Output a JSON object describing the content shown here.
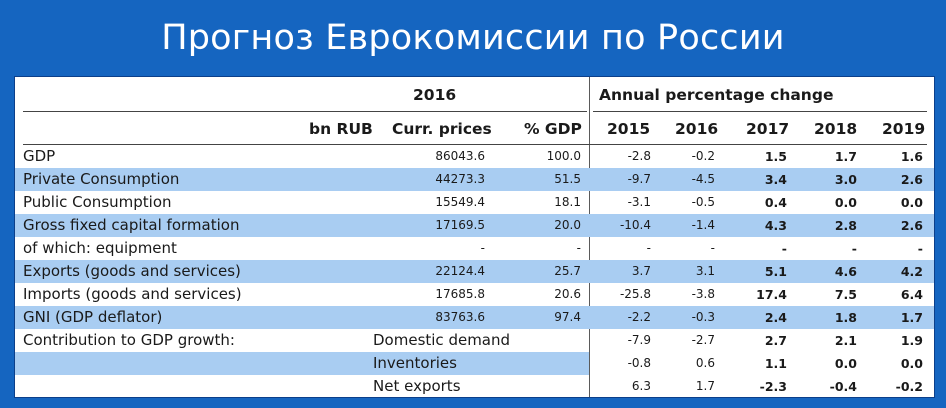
{
  "title": "Прогноз Еврокомиссии по России",
  "table": {
    "header_2016": "2016",
    "header_annual": "Annual percentage change",
    "col_bn_rub": "bn RUB",
    "col_curr_prices": "Curr. prices",
    "col_pct_gdp": "% GDP",
    "years": [
      "2015",
      "2016",
      "2017",
      "2018",
      "2019"
    ],
    "rows": [
      {
        "label": "GDP",
        "sub": "",
        "curr": "86043.6",
        "pct": "100.0",
        "v": [
          "-2.8",
          "-0.2",
          "1.5",
          "1.7",
          "1.6"
        ],
        "shaded": false
      },
      {
        "label": "Private Consumption",
        "sub": "",
        "curr": "44273.3",
        "pct": "51.5",
        "v": [
          "-9.7",
          "-4.5",
          "3.4",
          "3.0",
          "2.6"
        ],
        "shaded": true
      },
      {
        "label": "Public Consumption",
        "sub": "",
        "curr": "15549.4",
        "pct": "18.1",
        "v": [
          "-3.1",
          "-0.5",
          "0.4",
          "0.0",
          "0.0"
        ],
        "shaded": false
      },
      {
        "label": "Gross fixed capital formation",
        "sub": "",
        "curr": "17169.5",
        "pct": "20.0",
        "v": [
          "-10.4",
          "-1.4",
          "4.3",
          "2.8",
          "2.6"
        ],
        "shaded": true
      },
      {
        "label": "of which: equipment",
        "sub": "",
        "curr": "-",
        "pct": "-",
        "v": [
          "-",
          "-",
          "-",
          "-",
          "-"
        ],
        "shaded": false
      },
      {
        "label": "Exports (goods and services)",
        "sub": "",
        "curr": "22124.4",
        "pct": "25.7",
        "v": [
          "3.7",
          "3.1",
          "5.1",
          "4.6",
          "4.2"
        ],
        "shaded": true
      },
      {
        "label": "Imports (goods and services)",
        "sub": "",
        "curr": "17685.8",
        "pct": "20.6",
        "v": [
          "-25.8",
          "-3.8",
          "17.4",
          "7.5",
          "6.4"
        ],
        "shaded": false
      },
      {
        "label": "GNI (GDP deflator)",
        "sub": "",
        "curr": "83763.6",
        "pct": "97.4",
        "v": [
          "-2.2",
          "-0.3",
          "2.4",
          "1.8",
          "1.7"
        ],
        "shaded": true
      },
      {
        "label": "Contribution to GDP growth:",
        "sub": "Domestic demand",
        "curr": "",
        "pct": "",
        "v": [
          "-7.9",
          "-2.7",
          "2.7",
          "2.1",
          "1.9"
        ],
        "shaded": false
      },
      {
        "label": "",
        "sub": "Inventories",
        "curr": "",
        "pct": "",
        "v": [
          "-0.8",
          "0.6",
          "1.1",
          "0.0",
          "0.0"
        ],
        "shaded": true,
        "partial": true
      },
      {
        "label": "",
        "sub": "Net exports",
        "curr": "",
        "pct": "",
        "v": [
          "6.3",
          "1.7",
          "-2.3",
          "-0.4",
          "-0.2"
        ],
        "shaded": false
      }
    ]
  }
}
